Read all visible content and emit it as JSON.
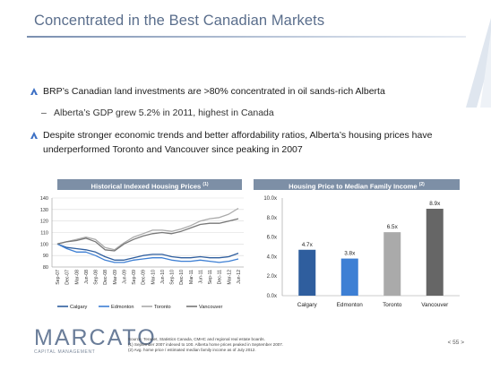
{
  "slide": {
    "title": "Concentrated in the Best Canadian Markets",
    "bullets": [
      "BRP’s Canadian land investments are >80% concentrated in oil sands-rich Alberta",
      "Despite stronger economic trends and better affordability ratios, Alberta’s housing prices have underperformed Toronto and Vancouver since peaking in 2007"
    ],
    "sub_bullet": "Alberta’s  GDP grew 5.2% in 2011, highest in Canada",
    "sub_dash": "–",
    "accent_color": "#3c6fc4",
    "page_number": "< 55 >"
  },
  "left_panel": {
    "title": "Historical Indexed Housing Prices",
    "superscript": "(1)"
  },
  "right_panel": {
    "title": "Housing Price to Median Family Income",
    "superscript": "(2)"
  },
  "footer": {
    "logo": "MARCATO",
    "logo_sub": "CAPITAL MANAGEMENT",
    "sources": [
      "Source: Teranet, Statistics Canada, CMHC and regional real estate boards.",
      "(1)     September 2007 indexed to 100.  Alberta home prices peaked in September 2007.",
      "(2)     Avg. home price / estimated median family income as of July 2012."
    ]
  },
  "chart_data": [
    {
      "type": "line",
      "title": "Historical Indexed Housing Prices",
      "ylim": [
        80,
        140
      ],
      "yticks": [
        80,
        90,
        100,
        110,
        120,
        130,
        140
      ],
      "x": [
        "Sep-07",
        "Dec-07",
        "Mar-08",
        "Jun-08",
        "Sep-08",
        "Dec-08",
        "Mar-09",
        "Jun-09",
        "Sep-09",
        "Dec-09",
        "Mar-10",
        "Jun-10",
        "Sep-10",
        "Dec-10",
        "Mar-11",
        "Jun-11",
        "Sep-11",
        "Dec-11",
        "Mar-12",
        "Jun-12"
      ],
      "grid": true,
      "legend": "bottom",
      "series": [
        {
          "name": "Calgary",
          "color": "#2f5e9e",
          "values": [
            100,
            97,
            96,
            95,
            93,
            89,
            86,
            86,
            88,
            90,
            91,
            91,
            89,
            88,
            88,
            89,
            88,
            88,
            89,
            92
          ]
        },
        {
          "name": "Edmonton",
          "color": "#3d7fd4",
          "values": [
            100,
            96,
            93,
            93,
            90,
            86,
            84,
            84,
            86,
            87,
            88,
            88,
            86,
            85,
            85,
            86,
            85,
            84,
            85,
            87
          ]
        },
        {
          "name": "Toronto",
          "color": "#aaaaaa",
          "values": [
            100,
            102,
            104,
            106,
            104,
            97,
            95,
            101,
            106,
            109,
            112,
            112,
            111,
            113,
            116,
            120,
            122,
            123,
            126,
            131
          ]
        },
        {
          "name": "Vancouver",
          "color": "#777777",
          "values": [
            100,
            102,
            103,
            105,
            102,
            95,
            94,
            100,
            104,
            107,
            109,
            110,
            109,
            111,
            114,
            117,
            118,
            118,
            120,
            122
          ]
        }
      ]
    },
    {
      "type": "bar",
      "title": "Housing Price to Median Family Income",
      "categories": [
        "Calgary",
        "Edmonton",
        "Toronto",
        "Vancouver"
      ],
      "values": [
        4.7,
        3.8,
        6.5,
        8.9
      ],
      "value_labels": [
        "4.7x",
        "3.8x",
        "6.5x",
        "8.9x"
      ],
      "colors": [
        "#2f5e9e",
        "#3d7fd4",
        "#aaaaaa",
        "#666666"
      ],
      "ylim": [
        0,
        10
      ],
      "yticks": [
        0,
        2,
        4,
        6,
        8,
        10
      ],
      "ytick_labels": [
        "0.0x",
        "2.0x",
        "4.0x",
        "6.0x",
        "8.0x",
        "10.0x"
      ],
      "grid": false
    }
  ]
}
